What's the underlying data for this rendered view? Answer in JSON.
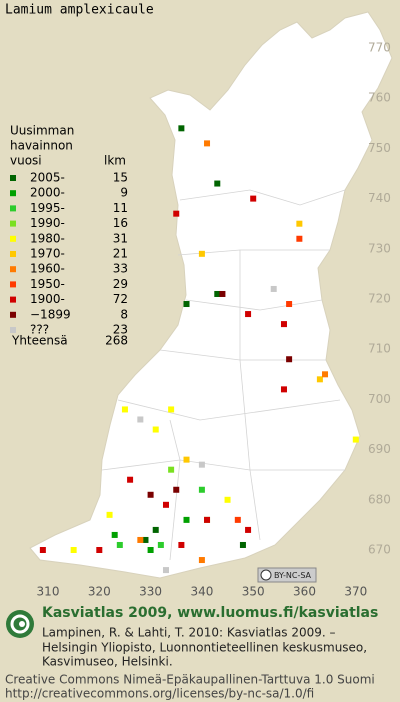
{
  "map": {
    "title": "Lamium amplexicaule",
    "legend_header": [
      "Uusimman",
      "havainnon",
      "vuosi"
    ],
    "count_header": "lkm",
    "legend": [
      {
        "label": "2005-",
        "count": 15,
        "color": "#006400",
        "squares": [
          [
            336,
            754
          ],
          [
            343,
            743
          ],
          [
            337,
            719
          ],
          [
            343,
            721
          ],
          [
            331,
            674
          ],
          [
            329,
            672
          ],
          [
            348,
            671
          ]
        ]
      },
      {
        "label": "2000-",
        "count": 9,
        "color": "#00a000",
        "squares": [
          [
            323,
            673
          ],
          [
            330,
            670
          ],
          [
            337,
            676
          ]
        ]
      },
      {
        "label": "1995-",
        "count": 11,
        "color": "#2ccc2c",
        "squares": [
          [
            340,
            682
          ],
          [
            324,
            671
          ],
          [
            332,
            671
          ]
        ]
      },
      {
        "label": "1990-",
        "count": 16,
        "color": "#7ae020",
        "squares": [
          [
            341,
            676
          ],
          [
            334,
            686
          ]
        ]
      },
      {
        "label": "1980-",
        "count": 31,
        "color": "#ffff00",
        "squares": [
          [
            325,
            698
          ],
          [
            334,
            698
          ],
          [
            331,
            694
          ],
          [
            370,
            692
          ],
          [
            322,
            677
          ],
          [
            315,
            670
          ],
          [
            345,
            680
          ]
        ]
      },
      {
        "label": "1970-",
        "count": 21,
        "color": "#ffc800",
        "squares": [
          [
            359,
            735
          ],
          [
            340,
            729
          ],
          [
            363,
            704
          ],
          [
            337,
            688
          ]
        ]
      },
      {
        "label": "1960-",
        "count": 33,
        "color": "#ff7a00",
        "squares": [
          [
            341,
            751
          ],
          [
            364,
            705
          ],
          [
            328,
            672
          ],
          [
            340,
            668
          ]
        ]
      },
      {
        "label": "1950-",
        "count": 29,
        "color": "#ff3a00",
        "squares": [
          [
            359,
            732
          ],
          [
            347,
            676
          ],
          [
            357,
            719
          ]
        ]
      },
      {
        "label": "1900-",
        "count": 72,
        "color": "#d00000",
        "squares": [
          [
            335,
            737
          ],
          [
            350,
            740
          ],
          [
            356,
            715
          ],
          [
            349,
            717
          ],
          [
            356,
            702
          ],
          [
            326,
            684
          ],
          [
            333,
            679
          ],
          [
            341,
            676
          ],
          [
            320,
            670
          ],
          [
            336,
            671
          ],
          [
            309,
            670
          ],
          [
            349,
            674
          ]
        ]
      },
      {
        "label": "−1899",
        "count": 8,
        "color": "#7a0000",
        "squares": [
          [
            344,
            721
          ],
          [
            357,
            708
          ],
          [
            335,
            682
          ],
          [
            330,
            681
          ]
        ]
      },
      {
        "label": "???",
        "count": 23,
        "color": "#c8c8c8",
        "squares": [
          [
            354,
            722
          ],
          [
            340,
            687
          ],
          [
            328,
            696
          ],
          [
            333,
            666
          ]
        ]
      }
    ],
    "total_label": "Yhteensä",
    "total": 268,
    "xticks": [
      310,
      320,
      330,
      340,
      350,
      360,
      370
    ],
    "yticks": [
      670,
      680,
      690,
      700,
      710,
      720,
      730,
      740,
      750,
      760,
      770
    ],
    "license_badge": "BY-NC-SA",
    "footer": {
      "headline": "Kasviatlas 2009, www.luomus.fi/kasviatlas",
      "credits": [
        "Lampinen, R. & Lahti, T. 2010: Kasviatlas 2009. –",
        "Helsingin Yliopisto, Luonnontieteellinen keskusmuseo,",
        "Kasvimuseo, Helsinki."
      ],
      "license": [
        "Creative Commons Nimeä-Epäkaupallinen-Tarttuva 1.0 Suomi",
        "http://creativecommons.org/licenses/by-nc-sa/1.0/fi"
      ]
    }
  }
}
